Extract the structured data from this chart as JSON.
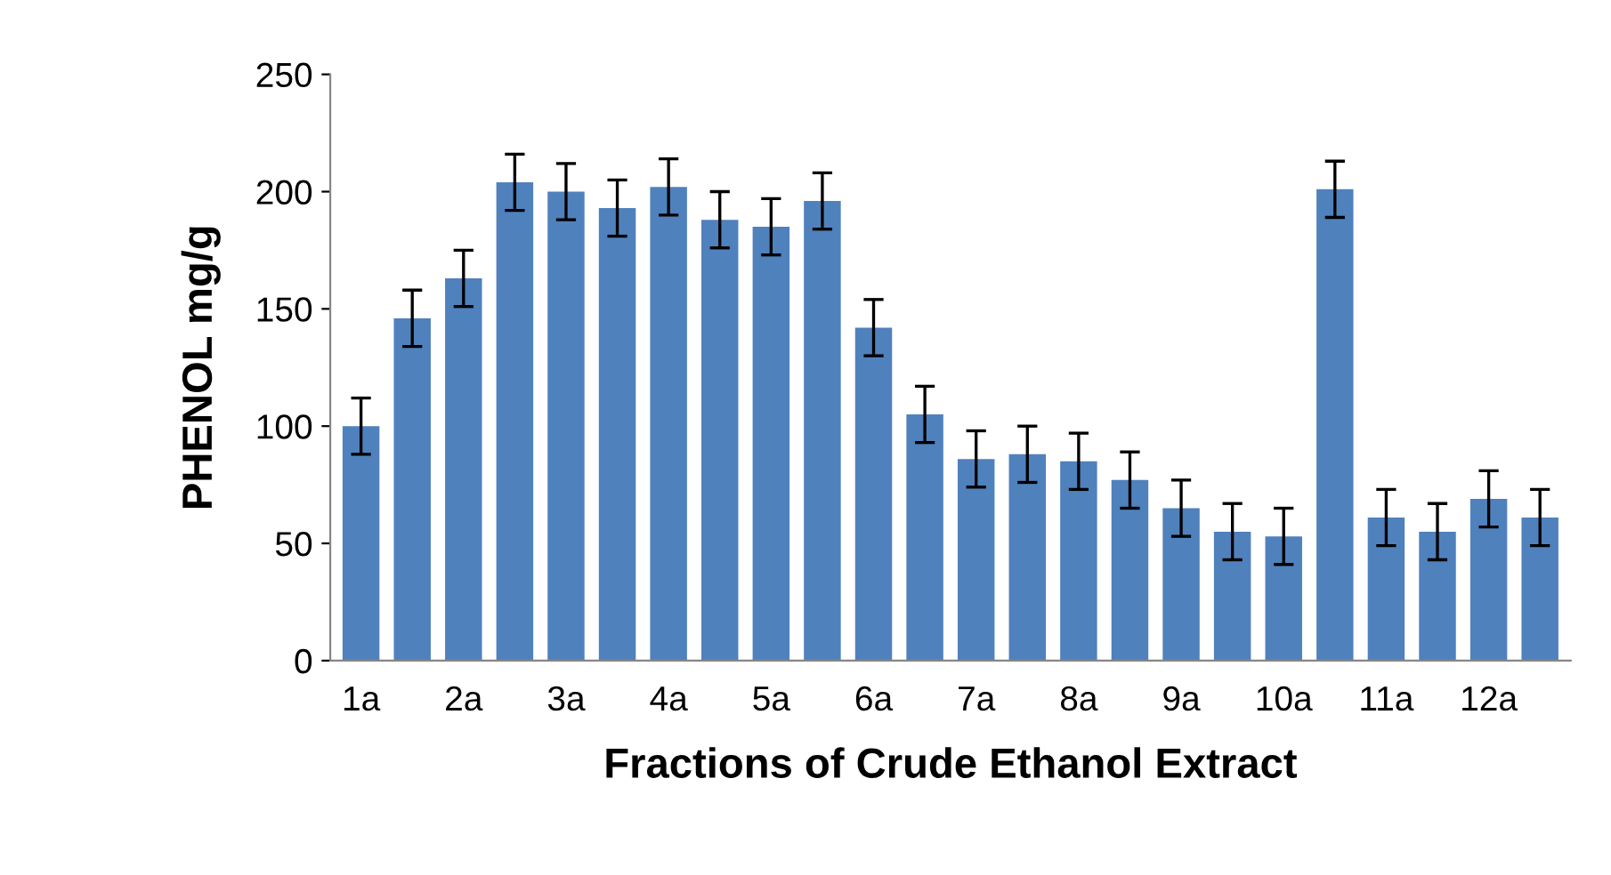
{
  "chart_data": {
    "type": "bar",
    "xlabel": "Fractions of Crude Ethanol Extract",
    "ylabel": "PHENOL mg/g",
    "categories": [
      "1a",
      null,
      "2a",
      null,
      "3a",
      null,
      "4a",
      null,
      "5a",
      null,
      "6a",
      null,
      "7a",
      null,
      "8a",
      null,
      "9a",
      null,
      "10a",
      null,
      "11a",
      null,
      "12a",
      null
    ],
    "values": [
      100,
      146,
      163,
      204,
      200,
      193,
      202,
      188,
      185,
      196,
      142,
      105,
      86,
      88,
      85,
      77,
      65,
      55,
      53,
      201,
      61,
      55,
      69,
      61
    ],
    "errors": [
      12,
      12,
      12,
      12,
      12,
      12,
      12,
      12,
      12,
      12,
      12,
      12,
      12,
      12,
      12,
      12,
      12,
      12,
      12,
      12,
      12,
      12,
      12,
      12
    ],
    "color": "#4f81bd",
    "ylim": [
      0,
      250
    ],
    "yticks": [
      0,
      50,
      100,
      150,
      200,
      250
    ],
    "grid": false,
    "legend": false
  }
}
